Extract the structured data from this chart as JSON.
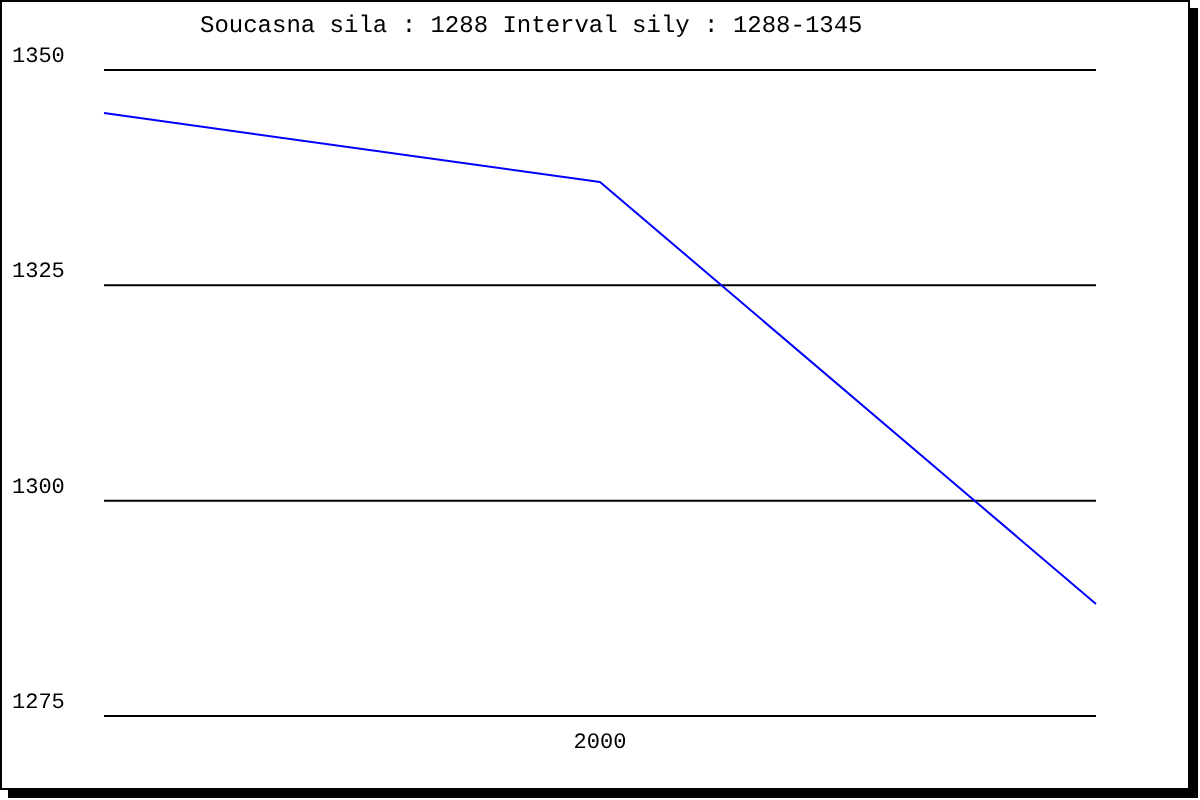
{
  "chart_data": {
    "type": "line",
    "title": "Soucasna sila : 1288  Interval sily : 1288-1345",
    "categories": [
      null,
      "2000",
      null
    ],
    "series": [
      {
        "color": "#0000ff",
        "values": [
          1345,
          1337,
          1288
        ]
      }
    ],
    "ylim": [
      1275,
      1350
    ],
    "yticks": [
      1275,
      1300,
      1325,
      1350
    ],
    "grid": "y",
    "legend": false,
    "marker": "none",
    "line_style": "solid"
  }
}
